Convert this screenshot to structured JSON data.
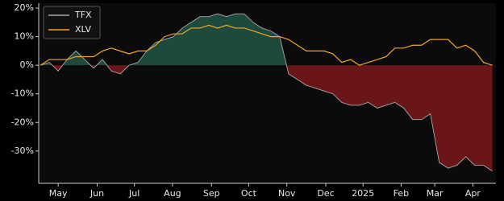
{
  "chart_data": {
    "type": "line",
    "series": [
      {
        "name": "TFX",
        "color": "#a9a9a9",
        "values": [
          0,
          1,
          -2,
          2,
          5,
          2,
          -1,
          2,
          -2,
          -3,
          0,
          1,
          5,
          8,
          9,
          10,
          13,
          15,
          17,
          17,
          18,
          17,
          18,
          18,
          15,
          13,
          12,
          10,
          -3,
          -5,
          -7,
          -8,
          -9,
          -10,
          -13,
          -14,
          -14,
          -13,
          -15,
          -14,
          -13,
          -15,
          -19,
          -19,
          -17,
          -34,
          -36,
          -35,
          -32,
          -35,
          -35,
          -37
        ]
      },
      {
        "name": "XLV",
        "color": "#f5a623",
        "values": [
          0,
          2,
          2,
          2,
          3,
          3,
          3,
          5,
          6,
          5,
          4,
          5,
          5,
          7,
          10,
          11,
          11,
          13,
          13,
          14,
          13,
          14,
          13,
          13,
          12,
          11,
          10,
          10,
          9,
          7,
          5,
          5,
          5,
          4,
          1,
          2,
          0,
          1,
          2,
          3,
          6,
          6,
          7,
          7,
          9,
          9,
          9,
          6,
          7,
          5,
          1,
          0
        ]
      }
    ],
    "positive_fill": "#1d4a3c",
    "negative_fill": "#6a1618",
    "xlim": [
      -0.2,
      51.4
    ],
    "xticks": [
      {
        "value": 2,
        "label": "May"
      },
      {
        "value": 6.4,
        "label": "Jun"
      },
      {
        "value": 10.6,
        "label": "Jul"
      },
      {
        "value": 14.9,
        "label": "Aug"
      },
      {
        "value": 19.3,
        "label": "Sep"
      },
      {
        "value": 23.5,
        "label": "Oct"
      },
      {
        "value": 27.8,
        "label": "Nov"
      },
      {
        "value": 32.2,
        "label": "Dec"
      },
      {
        "value": 36.4,
        "label": "2025"
      },
      {
        "value": 40.7,
        "label": "Feb"
      },
      {
        "value": 44.5,
        "label": "Mar"
      },
      {
        "value": 48.8,
        "label": "Apr"
      }
    ],
    "ylim": [
      -41.3,
      21.7
    ],
    "yticks": [
      {
        "value": 20,
        "label": "20%"
      },
      {
        "value": 10,
        "label": "10%"
      },
      {
        "value": 0,
        "label": "0%"
      },
      {
        "value": -10,
        "label": "-10%"
      },
      {
        "value": -20,
        "label": "-20%"
      },
      {
        "value": -30,
        "label": "-30%"
      }
    ],
    "legend": "upper left"
  }
}
